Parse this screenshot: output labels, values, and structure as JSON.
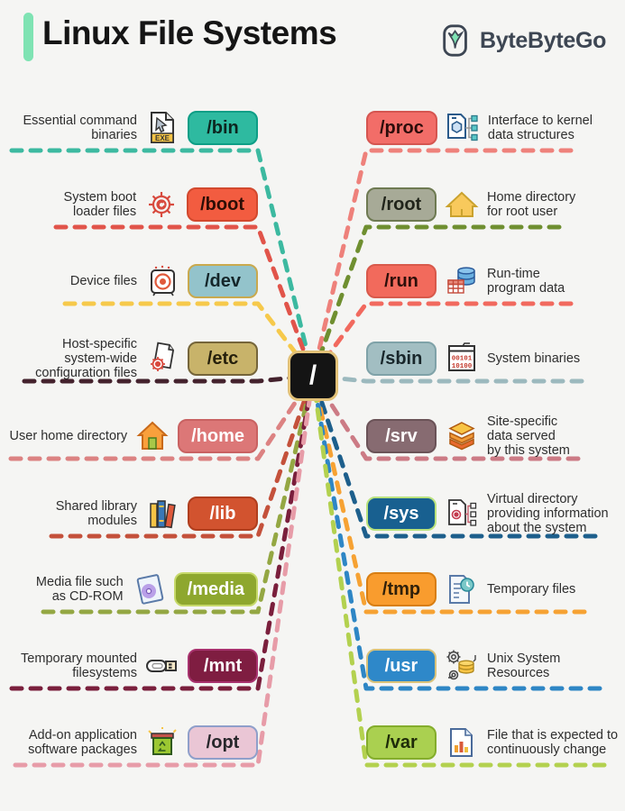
{
  "header": {
    "title": "Linux File Systems",
    "brand": "ByteByteGo",
    "accent_color": "#7fe3b3",
    "brand_color": "#3d4653"
  },
  "center": {
    "label": "/"
  },
  "left_rows": [
    {
      "label": "Essential command\nbinaries",
      "badge": "/bin",
      "icon": "exe-file-icon",
      "icon_text": "EXE",
      "badge_bg": "#2ebaa0",
      "badge_border": "#0e9e86",
      "badge_text": "#0d2620",
      "line_color": "#3cb9a0"
    },
    {
      "label": "System boot\nloader files",
      "badge": "/boot",
      "icon": "boot-gear-icon",
      "badge_bg": "#f25c40",
      "badge_border": "#d2492e",
      "badge_text": "#2d0d05",
      "line_color": "#e1544a"
    },
    {
      "label": "Device files",
      "badge": "/dev",
      "icon": "device-speaker-icon",
      "badge_bg": "#93c3cb",
      "badge_border": "#c9a94e",
      "badge_text": "#15262a",
      "line_color": "#f6c94b"
    },
    {
      "label": "Host-specific\nsystem-wide\nconfiguration files",
      "badge": "/etc",
      "icon": "config-files-icon",
      "badge_bg": "#c8b36a",
      "badge_border": "#75653a",
      "badge_text": "#26200c",
      "line_color": "#44222d"
    },
    {
      "label": "User home directory",
      "badge": "/home",
      "icon": "home-icon",
      "badge_bg": "#dc7777",
      "badge_border": "#c96262",
      "badge_text": "#ffffff",
      "line_color": "#dc8282"
    },
    {
      "label": "Shared library\nmodules",
      "badge": "/lib",
      "icon": "library-books-icon",
      "badge_bg": "#d2532f",
      "badge_border": "#b03e1e",
      "badge_text": "#ffffff",
      "line_color": "#c4513b"
    },
    {
      "label": "Media file such\nas CD-ROM",
      "badge": "/media",
      "icon": "cd-media-icon",
      "badge_bg": "#8ea72e",
      "badge_border": "#c6d96a",
      "badge_text": "#ffffff",
      "line_color": "#94a743"
    },
    {
      "label": "Temporary mounted\nfilesystems",
      "badge": "/mnt",
      "icon": "usb-drive-icon",
      "badge_bg": "#7f1d41",
      "badge_border": "#a8326e",
      "badge_text": "#ffffff",
      "line_color": "#7a1f3c"
    },
    {
      "label": "Add-on application\nsoftware packages",
      "badge": "/opt",
      "icon": "package-box-icon",
      "badge_bg": "#eac6d5",
      "badge_border": "#8f9fca",
      "badge_text": "#27272b",
      "line_color": "#e79ca8"
    }
  ],
  "right_rows": [
    {
      "badge": "/proc",
      "label": "Interface to kernel\ndata structures",
      "icon": "kernel-interface-icon",
      "badge_bg": "#f26d68",
      "badge_border": "#d55550",
      "badge_text": "#2d0d0b",
      "line_color": "#ee817b"
    },
    {
      "badge": "/root",
      "label": "Home directory\nfor root user",
      "icon": "root-home-icon",
      "badge_bg": "#a7aa97",
      "badge_border": "#6e7a52",
      "badge_text": "#20241a",
      "line_color": "#6f8f30"
    },
    {
      "badge": "/run",
      "label": "Run-time\nprogram data",
      "icon": "runtime-data-icon",
      "badge_bg": "#f26a5c",
      "badge_border": "#d8594b",
      "badge_text": "#2d0f0a",
      "line_color": "#f1695e"
    },
    {
      "badge": "/sbin",
      "label": "System binaries",
      "icon": "binary-code-icon",
      "icon_text_1": "00101",
      "icon_text_2": "10100",
      "badge_bg": "#a2bec2",
      "badge_border": "#7fa2a8",
      "badge_text": "#18262a",
      "line_color": "#9cb9be"
    },
    {
      "badge": "/srv",
      "label": "Site-specific\ndata served\nby this system",
      "icon": "data-layers-icon",
      "badge_bg": "#876b71",
      "badge_border": "#6b5358",
      "badge_text": "#ffffff",
      "line_color": "#cc7b85"
    },
    {
      "badge": "/sys",
      "label": "Virtual directory\nproviding information\nabout the system",
      "icon": "system-info-icon",
      "badge_bg": "#186090",
      "badge_border": "#b9e27d",
      "badge_text": "#ffffff",
      "line_color": "#1d5f8c"
    },
    {
      "badge": "/tmp",
      "label": "Temporary files",
      "icon": "temp-file-icon",
      "badge_bg": "#f99c2e",
      "badge_border": "#d87e12",
      "badge_text": "#30200a",
      "line_color": "#f6a233"
    },
    {
      "badge": "/usr",
      "label": "Unix System\nResources",
      "icon": "unix-resources-icon",
      "badge_bg": "#2e88c9",
      "badge_border": "#d9c27a",
      "badge_text": "#ffffff",
      "line_color": "#2e86c5"
    },
    {
      "badge": "/var",
      "label": "File that is expected to\ncontinuously change",
      "icon": "variable-file-icon",
      "badge_bg": "#aad050",
      "badge_border": "#84ad2c",
      "badge_text": "#1f2c09",
      "line_color": "#b3d14f"
    }
  ]
}
